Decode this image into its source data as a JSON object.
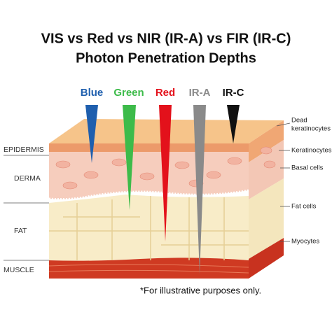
{
  "title_lines": [
    "VIS vs Red vs NIR (IR-A) vs FIR (IR-C)",
    "Photon Penetration Depths"
  ],
  "beams": [
    {
      "label": "Blue",
      "color": "#1f5fae"
    },
    {
      "label": "Green",
      "color": "#3dbb4a"
    },
    {
      "label": "Red",
      "color": "#e3111b"
    },
    {
      "label": "IR-A",
      "color": "#8a8a8a"
    },
    {
      "label": "IR-C",
      "color": "#111111"
    }
  ],
  "layers": [
    "EPIDERMIS",
    "DERMA",
    "FAT",
    "MUSCLE"
  ],
  "cells": [
    [
      "Dead",
      "keratinocytes"
    ],
    [
      "Keratinocytes"
    ],
    [
      "Basal cells"
    ],
    [
      "Fat cells"
    ],
    [
      "Myocytes"
    ]
  ],
  "footnote": "*For illustrative purposes only."
}
